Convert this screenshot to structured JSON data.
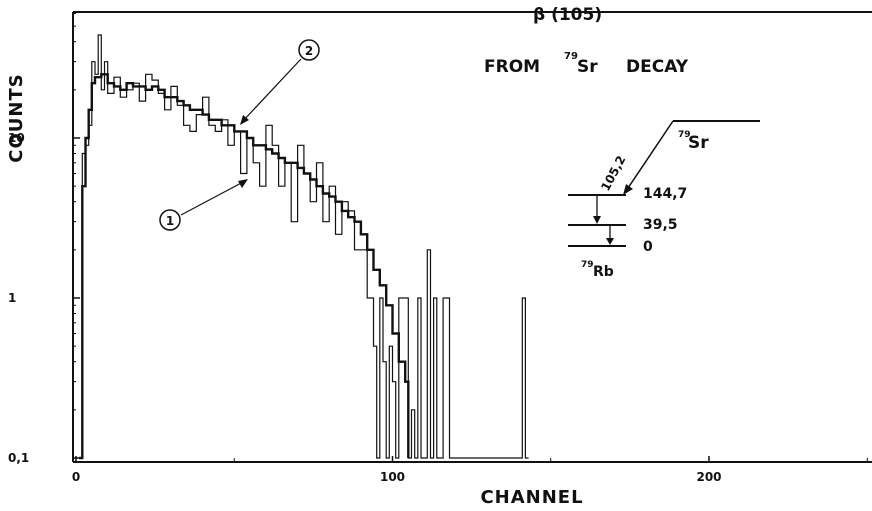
{
  "chart_data": {
    "type": "line",
    "title": "FROM 79Sr DECAY",
    "title_parts": {
      "beta": "β (105)",
      "from": "FROM",
      "mass": "79",
      "element": "Sr",
      "decay": "DECAY"
    },
    "xlabel": "CHANNEL",
    "ylabel": "COUNTS",
    "xlim": [
      0,
      250
    ],
    "ylim": [
      0.1,
      60
    ],
    "yscale": "log",
    "grid": false,
    "xticks": [
      0,
      100,
      200
    ],
    "xtick_labels": [
      "0",
      "100",
      "200"
    ],
    "yticks": [
      0.1,
      1,
      10
    ],
    "ytick_labels": [
      "0,1",
      "1",
      "10"
    ],
    "series": [
      {
        "name": "1",
        "style": "histogram",
        "color": "#111111",
        "x": [
          1,
          2,
          3,
          4,
          5,
          6,
          7,
          8,
          9,
          10,
          12,
          14,
          16,
          18,
          20,
          22,
          24,
          26,
          28,
          30,
          32,
          34,
          36,
          38,
          40,
          42,
          44,
          46,
          48,
          50,
          52,
          54,
          56,
          58,
          60,
          62,
          64,
          66,
          68,
          70,
          72,
          74,
          76,
          78,
          80,
          82,
          84,
          86,
          88,
          90,
          92,
          94,
          95,
          96,
          97,
          98,
          99,
          100,
          101,
          102,
          103,
          104,
          105,
          106,
          107,
          108,
          109,
          110,
          111,
          112,
          113,
          114,
          115,
          116,
          117,
          118,
          140,
          141,
          142
        ],
        "y": [
          0.1,
          8,
          9,
          12,
          30,
          25,
          44,
          20,
          30,
          19,
          24,
          18,
          20,
          22,
          17,
          25,
          23,
          19,
          15,
          21,
          16,
          12,
          11,
          14,
          18,
          12,
          11,
          13,
          9,
          11,
          6,
          10,
          7,
          5,
          12,
          9,
          5,
          7,
          3,
          9,
          6,
          4,
          7,
          3,
          5,
          2.5,
          4,
          3.5,
          2,
          2,
          1,
          0.5,
          0.1,
          1,
          0.4,
          0.1,
          0.5,
          0.3,
          0.1,
          1,
          1,
          1,
          0.1,
          0.2,
          0.1,
          1,
          0.1,
          0.1,
          2,
          0.1,
          1,
          0.1,
          0.1,
          1,
          1,
          0.1,
          0.1,
          1,
          0.1
        ]
      },
      {
        "name": "2",
        "style": "histogram",
        "color": "#111111",
        "x": [
          1,
          2,
          3,
          4,
          5,
          6,
          8,
          10,
          12,
          14,
          16,
          18,
          20,
          22,
          24,
          26,
          28,
          30,
          32,
          34,
          36,
          38,
          40,
          42,
          44,
          46,
          48,
          50,
          52,
          54,
          56,
          58,
          60,
          62,
          64,
          66,
          68,
          70,
          72,
          74,
          76,
          78,
          80,
          82,
          84,
          86,
          88,
          90,
          92,
          94,
          96,
          98,
          100,
          102,
          104
        ],
        "y": [
          0.1,
          5,
          10,
          15,
          22,
          24,
          25,
          22,
          21,
          20,
          22,
          21,
          21,
          20,
          21,
          20,
          18,
          18,
          17,
          16,
          15,
          15,
          14,
          13,
          13,
          12,
          12,
          11,
          11,
          10,
          9,
          9,
          8.5,
          8,
          7.5,
          7,
          7,
          6.5,
          6,
          5.5,
          5,
          4.5,
          4.3,
          4,
          3.5,
          3.2,
          3,
          2.5,
          2,
          1.5,
          1.2,
          0.9,
          0.6,
          0.4,
          0.3
        ]
      }
    ],
    "annotations": {
      "curve1_label": "1",
      "curve2_label": "2",
      "inset": {
        "parent_mass": "79",
        "parent_element": "Sr",
        "daughter_mass": "79",
        "daughter_element": "Rb",
        "transition_energy": "105,2",
        "levels": [
          "144,7",
          "39,5",
          "0"
        ]
      }
    }
  }
}
